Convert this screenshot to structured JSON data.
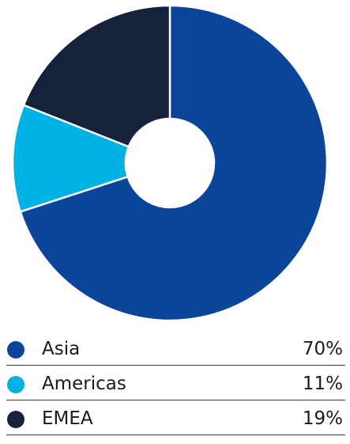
{
  "chart_data": {
    "type": "pie",
    "variant": "donut",
    "categories": [
      "Asia",
      "Americas",
      "EMEA"
    ],
    "values": [
      70,
      11,
      19
    ],
    "value_labels": [
      "70%",
      "11%",
      "19%"
    ],
    "colors": [
      "#0b4599",
      "#00b1e4",
      "#14223c"
    ],
    "legend_placement": "bottom"
  }
}
